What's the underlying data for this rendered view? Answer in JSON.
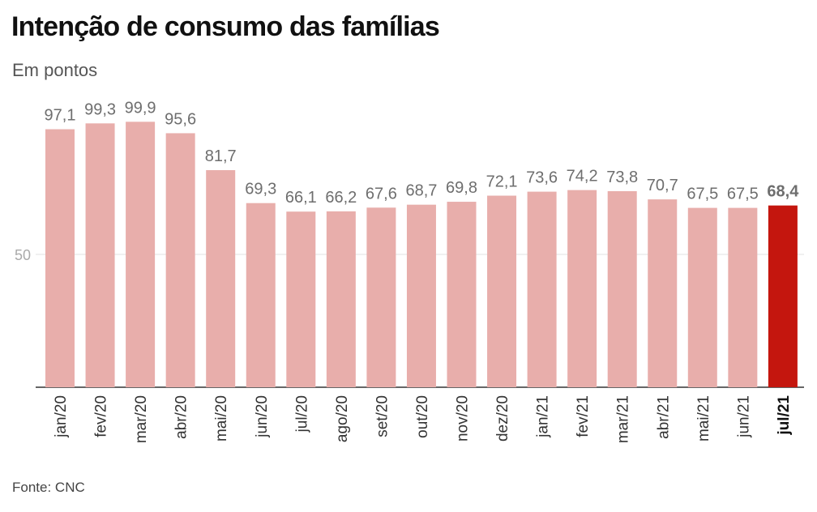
{
  "title": "Intenção de consumo das famílias",
  "subtitle": "Em pontos",
  "source": "Fonte: CNC",
  "colors": {
    "bar": "#e8aeab",
    "highlight": "#c4160e",
    "grid": "#e2e2e2",
    "axis": "#333333"
  },
  "chart_data": {
    "type": "bar",
    "title": "Intenção de consumo das famílias",
    "ylabel": "Em pontos",
    "xlabel": "",
    "categories": [
      "jan/20",
      "fev/20",
      "mar/20",
      "abr/20",
      "mai/20",
      "jun/20",
      "jul/20",
      "ago/20",
      "set/20",
      "out/20",
      "nov/20",
      "dez/20",
      "jan/21",
      "fev/21",
      "mar/21",
      "abr/21",
      "mai/21",
      "jun/21",
      "jul/21"
    ],
    "values": [
      97.1,
      99.3,
      99.9,
      95.6,
      81.7,
      69.3,
      66.1,
      66.2,
      67.6,
      68.7,
      69.8,
      72.1,
      73.6,
      74.2,
      73.8,
      70.7,
      67.5,
      67.5,
      68.4
    ],
    "value_labels": [
      "97,1",
      "99,3",
      "99,9",
      "95,6",
      "81,7",
      "69,3",
      "66,1",
      "66,2",
      "67,6",
      "68,7",
      "69,8",
      "72,1",
      "73,6",
      "74,2",
      "73,8",
      "70,7",
      "67,5",
      "67,5",
      "68,4"
    ],
    "highlight_index": 18,
    "ylim": [
      0,
      100
    ],
    "yticks": [
      50
    ],
    "ytick_labels": [
      "50"
    ],
    "grid": true
  }
}
